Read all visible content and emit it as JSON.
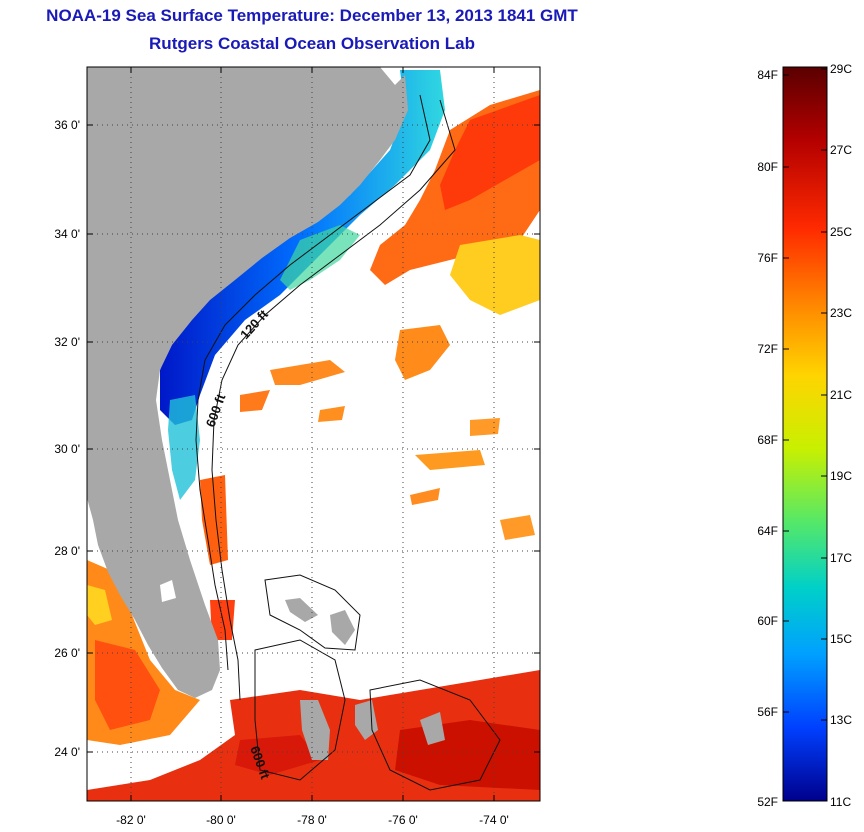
{
  "header": {
    "title": "NOAA-19 Sea Surface Temperature:  December 13, 2013 1841 GMT",
    "subtitle": "Rutgers Coastal Ocean Observation Lab"
  },
  "map": {
    "lat_labels": [
      "36 0'",
      "34 0'",
      "32 0'",
      "30 0'",
      "28 0'",
      "26 0'",
      "24 0'"
    ],
    "lon_labels": [
      "-82 0'",
      "-80 0'",
      "-78 0'",
      "-76 0'",
      "-74 0'"
    ],
    "contour_labels": [
      "120 ft",
      "600 ft",
      "600 ft"
    ],
    "colors": {
      "land": "#a8a8a8",
      "ocean_no_data": "#ffffff",
      "grid": "#444444"
    }
  },
  "colorbar": {
    "fahrenheit": [
      "84F",
      "80F",
      "76F",
      "72F",
      "68F",
      "64F",
      "60F",
      "56F",
      "52F"
    ],
    "celsius": [
      "29C",
      "27C",
      "25C",
      "23C",
      "21C",
      "19C",
      "17C",
      "15C",
      "13C",
      "11C"
    ],
    "colors": [
      "#5a0000",
      "#b40000",
      "#ff2a00",
      "#ff8c00",
      "#ffd400",
      "#c8f000",
      "#55e868",
      "#00d0c8",
      "#00a0ff",
      "#0040ff",
      "#00008c"
    ]
  }
}
